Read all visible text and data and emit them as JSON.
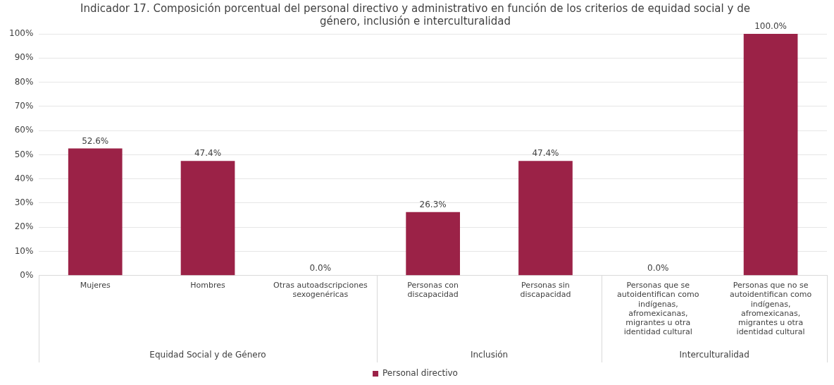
{
  "chart_data": {
    "type": "bar",
    "title": "Indicador 17. Composición porcentual del personal directivo y administrativo en función de los criterios de equidad social y de género, inclusión e interculturalidad",
    "categories": [
      "Mujeres",
      "Hombres",
      "Otras autoadscripciones sexogenéricas",
      "Personas con discapacidad",
      "Personas sin discapacidad",
      "Personas que se autoidentifican como indígenas, afromexicanas, migrantes u otra identidad cultural",
      "Personas que no se autoidentifican como indígenas, afromexicanas, migrantes u otra identidad cultural"
    ],
    "series": [
      {
        "name": "Personal directivo",
        "color": "#9b2247",
        "values": [
          52.6,
          47.4,
          0.0,
          26.3,
          47.4,
          0.0,
          100.0
        ],
        "value_labels": [
          "52.6%",
          "47.4%",
          "0.0%",
          "26.3%",
          "47.4%",
          "0.0%",
          "100.0%"
        ]
      }
    ],
    "ylim": [
      0,
      100
    ],
    "yticks": [
      {
        "value": 0,
        "label": "0%"
      },
      {
        "value": 10,
        "label": "10%"
      },
      {
        "value": 20,
        "label": "20%"
      },
      {
        "value": 30,
        "label": "30%"
      },
      {
        "value": 40,
        "label": "40%"
      },
      {
        "value": 50,
        "label": "50%"
      },
      {
        "value": 60,
        "label": "60%"
      },
      {
        "value": 70,
        "label": "70%"
      },
      {
        "value": 80,
        "label": "80%"
      },
      {
        "value": 90,
        "label": "90%"
      },
      {
        "value": 100,
        "label": "100%"
      }
    ],
    "grid": "y",
    "legend": "bottom",
    "annotations": [
      "Equidad Social y de Género",
      "Inclusión",
      "Interculturalidad"
    ]
  }
}
